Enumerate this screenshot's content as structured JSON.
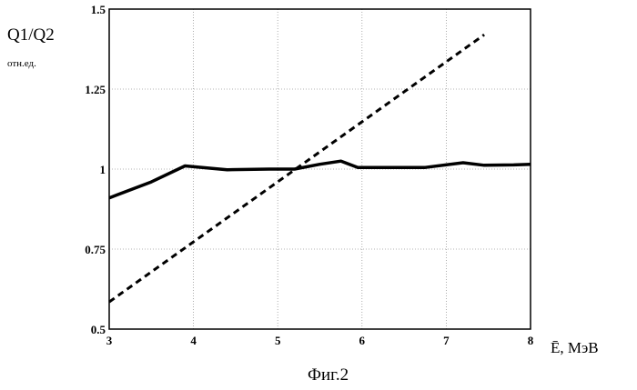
{
  "chart_data": {
    "type": "line",
    "ylabel": "Q1/Q2",
    "ylabel_sub": "отн.ед.",
    "xlabel": "Ē, МэВ",
    "caption": "Фиг.2",
    "xlim": [
      3,
      8
    ],
    "ylim": [
      0.5,
      1.5
    ],
    "x_ticks": [
      "3",
      "4",
      "5",
      "6",
      "7",
      "8"
    ],
    "y_ticks": [
      "0.5",
      "0.75",
      "1",
      "1.25",
      "1.5"
    ],
    "grid": true,
    "series": [
      {
        "style": "solid",
        "x": [
          3.0,
          3.5,
          3.9,
          4.4,
          4.9,
          5.2,
          5.5,
          5.75,
          5.95,
          6.2,
          6.75,
          7.2,
          7.45,
          7.8,
          8.0
        ],
        "y": [
          0.91,
          0.96,
          1.01,
          0.998,
          1.0,
          1.0,
          1.015,
          1.025,
          1.005,
          1.005,
          1.005,
          1.02,
          1.012,
          1.013,
          1.015
        ]
      },
      {
        "style": "dashed",
        "x": [
          3.0,
          7.45
        ],
        "y": [
          0.585,
          1.42
        ]
      }
    ]
  }
}
